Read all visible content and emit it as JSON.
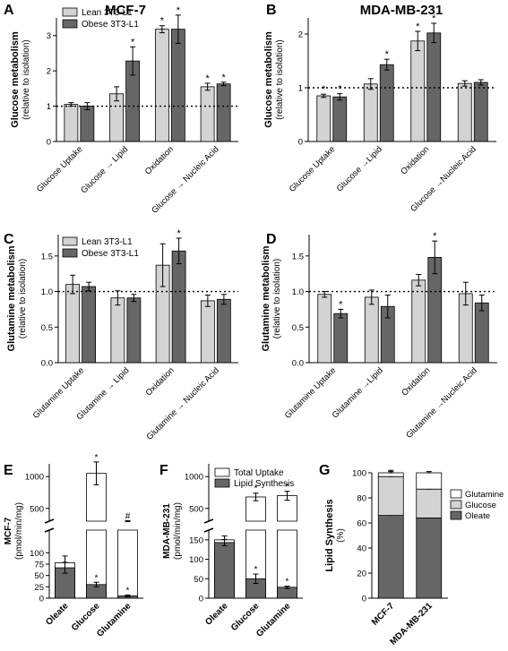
{
  "colors": {
    "light": "#d3d3d3",
    "dark": "#666666",
    "white": "#ffffff",
    "stroke": "#000000"
  },
  "chart_data": [
    {
      "panel": "A",
      "title": "MCF-7",
      "type": "bar",
      "ylabel": "Glucose metabolism",
      "ylabel2": "(relative to isolation)",
      "ylim": [
        0,
        3.5
      ],
      "yticks": [
        0,
        1,
        2,
        3
      ],
      "ref_line": 1,
      "categories": [
        "Glucose Uptake",
        "Glucose → Lipid",
        "Oxidation",
        "Glucose → Nucleic Acid"
      ],
      "legend": [
        "Lean 3T3-L1",
        "Obese 3T3-L1"
      ],
      "series": [
        {
          "name": "Lean 3T3-L1",
          "color": "#d3d3d3",
          "values": [
            1.05,
            1.35,
            3.18,
            1.55
          ],
          "errors": [
            0.05,
            0.2,
            0.1,
            0.1
          ],
          "sig": [
            false,
            false,
            true,
            true
          ]
        },
        {
          "name": "Obese 3T3-L1",
          "color": "#666666",
          "values": [
            1.0,
            2.28,
            3.18,
            1.63
          ],
          "errors": [
            0.1,
            0.4,
            0.4,
            0.05
          ],
          "sig": [
            false,
            true,
            true,
            true
          ]
        }
      ]
    },
    {
      "panel": "B",
      "title": "MDA-MB-231",
      "type": "bar",
      "ylabel": "Glucose metabolism",
      "ylabel2": "(relative to isolation)",
      "ylim": [
        0,
        2.3
      ],
      "yticks": [
        0,
        1,
        2
      ],
      "ref_line": 1,
      "categories": [
        "Glucose Uptake",
        "Glucose →Lipid",
        "Oxidation",
        "Glucose →Nucleic Acid"
      ],
      "series": [
        {
          "color": "#d3d3d3",
          "values": [
            0.85,
            1.07,
            1.87,
            1.08
          ],
          "errors": [
            0.03,
            0.1,
            0.18,
            0.05
          ],
          "sig": [
            true,
            false,
            true,
            false
          ]
        },
        {
          "color": "#666666",
          "values": [
            0.83,
            1.43,
            2.02,
            1.1
          ],
          "errors": [
            0.06,
            0.1,
            0.18,
            0.05
          ],
          "sig": [
            true,
            true,
            true,
            false
          ]
        }
      ]
    },
    {
      "panel": "C",
      "title": "",
      "type": "bar",
      "ylabel": "Glutamine metabolism",
      "ylabel2": "(relative to isolation)",
      "ylim": [
        0,
        1.8
      ],
      "yticks": [
        0.0,
        0.5,
        1.0,
        1.5
      ],
      "ref_line": 1,
      "categories": [
        "Glutamine Uptake",
        "Glutamine → Lipid",
        "Oxidation",
        "Glutamine → Nucleic Acid"
      ],
      "legend": [
        "Lean 3T3-L1",
        "Obese 3T3-L1"
      ],
      "series": [
        {
          "name": "Lean 3T3-L1",
          "color": "#d3d3d3",
          "values": [
            1.1,
            0.91,
            1.37,
            0.87
          ],
          "errors": [
            0.13,
            0.1,
            0.3,
            0.08
          ],
          "sig": [
            false,
            false,
            false,
            false
          ]
        },
        {
          "name": "Obese 3T3-L1",
          "color": "#666666",
          "values": [
            1.07,
            0.91,
            1.57,
            0.89
          ],
          "errors": [
            0.06,
            0.05,
            0.18,
            0.07
          ],
          "sig": [
            false,
            false,
            true,
            false
          ]
        }
      ]
    },
    {
      "panel": "D",
      "title": "",
      "type": "bar",
      "ylabel": "Glutamine metabolism",
      "ylabel2": "(relative to isolation)",
      "ylim": [
        0,
        1.8
      ],
      "yticks": [
        0.0,
        0.5,
        1.0,
        1.5
      ],
      "ref_line": 1,
      "categories": [
        "Glutamine Uptake",
        "Glutamine →Lipid",
        "Oxidation",
        "Glutamine →Nucleic Acid"
      ],
      "series": [
        {
          "color": "#d3d3d3",
          "values": [
            0.96,
            0.92,
            1.16,
            0.97
          ],
          "errors": [
            0.04,
            0.1,
            0.08,
            0.16
          ],
          "sig": [
            false,
            false,
            false,
            false
          ]
        },
        {
          "color": "#666666",
          "values": [
            0.69,
            0.79,
            1.48,
            0.84
          ],
          "errors": [
            0.06,
            0.16,
            0.23,
            0.11
          ],
          "sig": [
            true,
            false,
            true,
            false
          ]
        }
      ]
    },
    {
      "panel": "E",
      "type": "stacked_bar_broken_axis",
      "ylabel": "MCF-7",
      "ylabel2": "(pmol/min/mg)",
      "upper_range": [
        300,
        1200
      ],
      "upper_ticks": [
        500,
        1000
      ],
      "lower_range": [
        0,
        150
      ],
      "lower_ticks": [
        0,
        25,
        50,
        75,
        100
      ],
      "categories": [
        "Oleate",
        "Glucose",
        "Glutamine"
      ],
      "total_uptake": [
        78,
        1050,
        300
      ],
      "total_err": [
        15,
        180,
        8
      ],
      "total_sig": [
        "",
        "*",
        "#"
      ],
      "lipid_synthesis": [
        67,
        30,
        5
      ],
      "lipid_err": [
        12,
        5,
        2
      ],
      "lipid_sig": [
        "",
        "*",
        "*"
      ]
    },
    {
      "panel": "F",
      "type": "stacked_bar_broken_axis",
      "ylabel": "MDA-MB-231",
      "ylabel2": "(pmol/min/mg)",
      "upper_range": [
        300,
        1200
      ],
      "upper_ticks": [
        500,
        1000
      ],
      "lower_range": [
        0,
        175
      ],
      "lower_ticks": [
        0,
        50,
        100,
        150
      ],
      "categories": [
        "Oleate",
        "Glucose",
        "Glutamine"
      ],
      "legend": [
        "Total Uptake",
        "Lipid Synthesis"
      ],
      "total_uptake": [
        150,
        680,
        700
      ],
      "total_err": [
        10,
        60,
        70
      ],
      "total_sig": [
        "",
        "*",
        "*"
      ],
      "lipid_synthesis": [
        143,
        50,
        28
      ],
      "lipid_err": [
        8,
        12,
        3
      ],
      "lipid_sig": [
        "",
        "*",
        "*"
      ]
    },
    {
      "panel": "G",
      "type": "stacked_bar",
      "ylabel": "Lipid Synthesis",
      "ylabel2": "(%)",
      "ylim": [
        0,
        100
      ],
      "yticks": [
        0,
        20,
        40,
        60,
        80,
        100
      ],
      "categories": [
        "MCF-7",
        "MDA-MB-231"
      ],
      "legend": [
        "Glutamine",
        "Glucose",
        "Oleate"
      ],
      "stack": [
        {
          "name": "Oleate",
          "color": "#666666",
          "values": [
            66,
            64
          ],
          "errors": [
            5,
            5
          ]
        },
        {
          "name": "Glucose",
          "color": "#d3d3d3",
          "values": [
            31,
            23
          ],
          "errors": [
            5,
            4
          ]
        },
        {
          "name": "Glutamine",
          "color": "#ffffff",
          "values": [
            3,
            13
          ],
          "errors": [
            1,
            1
          ]
        }
      ]
    }
  ]
}
